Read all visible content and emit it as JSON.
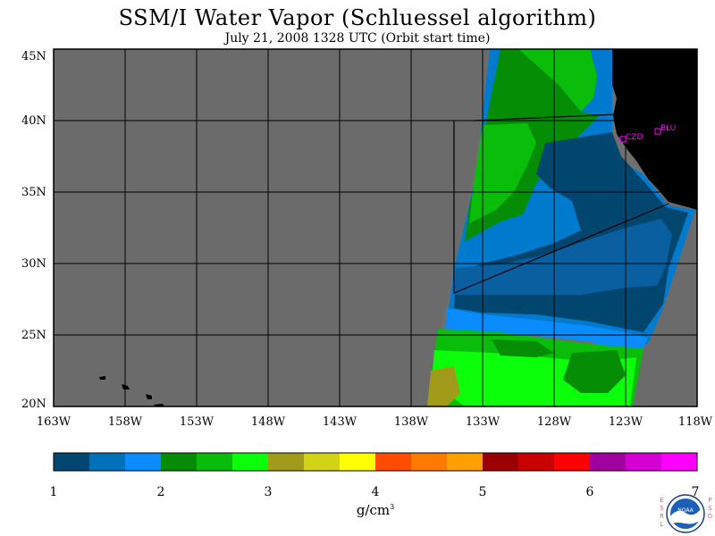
{
  "header": {
    "title": "SSM/I Water Vapor (Schluessel algorithm)",
    "subtitle": "July 21, 2008  1328 UTC  (Orbit start time)"
  },
  "map": {
    "background_color": "#6b6b6b",
    "land_color": "#000000",
    "grid_color": "#000000",
    "lat_labels": [
      "45N",
      "40N",
      "35N",
      "30N",
      "25N",
      "20N"
    ],
    "lon_labels": [
      "163W",
      "158W",
      "153W",
      "148W",
      "143W",
      "138W",
      "133W",
      "128W",
      "123W",
      "118W"
    ],
    "stations": [
      {
        "label": "CZD"
      },
      {
        "label": "BLU"
      }
    ],
    "station_color": "#ff00ff"
  },
  "colorbar": {
    "colors": [
      "#00466e",
      "#0070b8",
      "#0a8cff",
      "#058b05",
      "#0abc0a",
      "#0bff0b",
      "#a09c1a",
      "#d2d216",
      "#ffff00",
      "#ff4d00",
      "#ff7a00",
      "#ffa000",
      "#9a0000",
      "#c80000",
      "#ff0000",
      "#a0009e",
      "#d200d2",
      "#ff00ff"
    ],
    "tick_labels": [
      "1",
      "2",
      "3",
      "4",
      "5",
      "6",
      "7"
    ],
    "units": "g/cm"
  },
  "logo": {
    "text": "NOAA",
    "esrl": "ESRL",
    "psd": "PSD"
  }
}
